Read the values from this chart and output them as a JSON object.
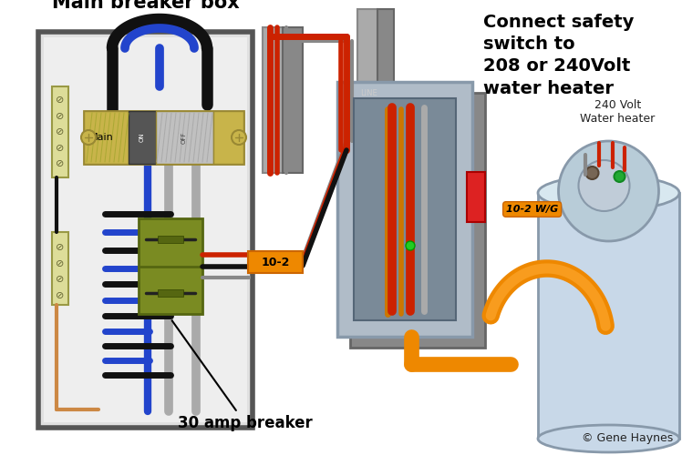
{
  "bg_color": "#ffffff",
  "title": "Main breaker box",
  "right_text": "Connect safety\nswitch to\n208 or 240Volt\nwater heater",
  "label_30amp": "30 amp breaker",
  "label_10_2": "10-2",
  "label_10_2wg": "10-2 W/G",
  "label_wh": "240 Volt\nWater heater",
  "credit": "© Gene Haynes",
  "box_fc": "#e0e0e0",
  "box_ec": "#555555",
  "inner_fc": "#eeeeee",
  "mb_fc": "#c8b44a",
  "mb_ec": "#998833",
  "b30_fc": "#7a8b22",
  "b30_ec": "#556611",
  "ss_fc": "#b0bcc8",
  "ss_ec": "#8899aa",
  "ss_inner_fc": "#7a8a98",
  "tank_fc": "#c8d8e8",
  "tank_ec": "#8899aa",
  "wire_red": "#cc2200",
  "wire_black": "#111111",
  "wire_grey": "#888888",
  "wire_blue": "#2244cc",
  "wire_orange": "#ee8800",
  "orange_light": "#ffaa33",
  "strip_fc": "#dddd99",
  "strip_ec": "#999944"
}
